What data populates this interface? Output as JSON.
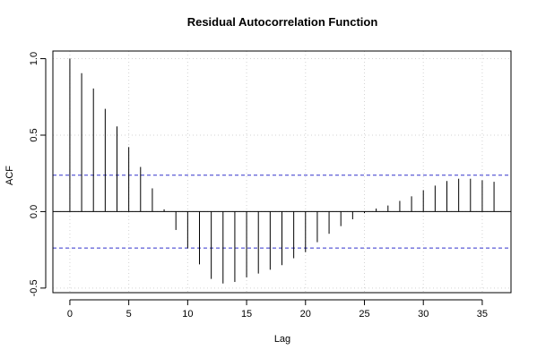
{
  "chart_data": {
    "type": "bar",
    "title": "Residual Autocorrelation Function",
    "xlabel": "Lag",
    "ylabel": "ACF",
    "xlim": [
      -1.44,
      37.44
    ],
    "ylim": [
      -0.53,
      1.05
    ],
    "x_ticks": [
      0,
      5,
      10,
      15,
      20,
      25,
      30,
      35
    ],
    "y_ticks": [
      -0.5,
      0.0,
      0.5,
      1.0
    ],
    "x_tick_labels": [
      "0",
      "5",
      "10",
      "15",
      "20",
      "25",
      "30",
      "35"
    ],
    "y_tick_labels": [
      "-0.5",
      "0.0",
      "0.5",
      "1.0"
    ],
    "grid": true,
    "lags": [
      0,
      1,
      2,
      3,
      4,
      5,
      6,
      7,
      8,
      9,
      10,
      11,
      12,
      13,
      14,
      15,
      16,
      17,
      18,
      19,
      20,
      21,
      22,
      23,
      24,
      25,
      26,
      27,
      28,
      29,
      30,
      31,
      32,
      33,
      34,
      35,
      36
    ],
    "values": [
      1.0,
      0.905,
      0.805,
      0.672,
      0.557,
      0.422,
      0.292,
      0.152,
      0.015,
      -0.12,
      -0.24,
      -0.345,
      -0.44,
      -0.47,
      -0.46,
      -0.43,
      -0.405,
      -0.38,
      -0.35,
      -0.305,
      -0.265,
      -0.2,
      -0.145,
      -0.095,
      -0.05,
      -0.01,
      0.02,
      0.04,
      0.07,
      0.1,
      0.14,
      0.17,
      0.2,
      0.215,
      0.215,
      0.205,
      0.195
    ],
    "confidence_bounds": [
      0.238,
      -0.238
    ],
    "colors": {
      "bars": "#000000",
      "confidence": "#3333cc",
      "grid": "#d3d3d3",
      "zero_line": "#000000"
    }
  }
}
